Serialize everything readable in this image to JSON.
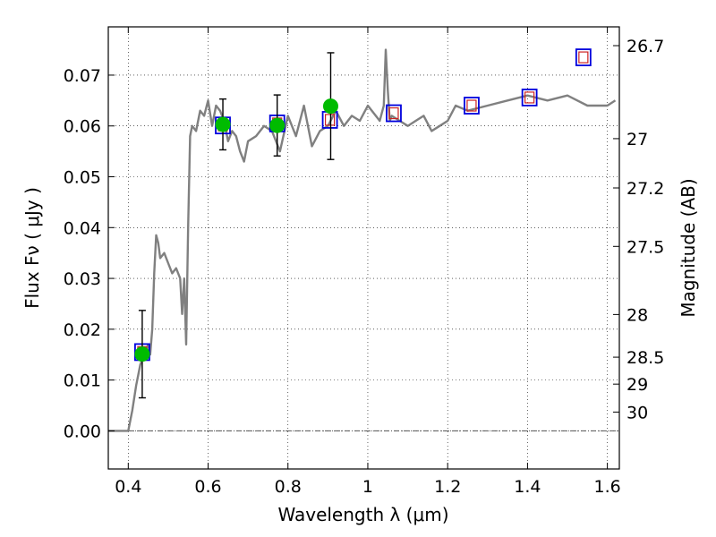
{
  "chart_data": {
    "type": "scatter",
    "xlabel": "Wavelength  λ (μm)",
    "ylabel": "Flux  Fν  ( μJy )",
    "ylabel_right": "Magnitude (AB)",
    "xlim": [
      0.35,
      1.63
    ],
    "ylim": [
      -0.0075,
      0.0795
    ],
    "grid": true,
    "x_ticks": [
      {
        "value": 0.4,
        "label": "0.4"
      },
      {
        "value": 0.6,
        "label": "0.6"
      },
      {
        "value": 0.8,
        "label": "0.8"
      },
      {
        "value": 1.0,
        "label": "1"
      },
      {
        "value": 1.2,
        "label": "1.2"
      },
      {
        "value": 1.4,
        "label": "1.4"
      },
      {
        "value": 1.6,
        "label": "1.6"
      }
    ],
    "y_ticks": [
      {
        "value": 0.0,
        "label": "0.00"
      },
      {
        "value": 0.01,
        "label": "0.01"
      },
      {
        "value": 0.02,
        "label": "0.02"
      },
      {
        "value": 0.03,
        "label": "0.03"
      },
      {
        "value": 0.04,
        "label": "0.04"
      },
      {
        "value": 0.05,
        "label": "0.05"
      },
      {
        "value": 0.06,
        "label": "0.06"
      },
      {
        "value": 0.07,
        "label": "0.07"
      }
    ],
    "y2_ticks": [
      {
        "flux": 0.0758,
        "label": "26.7"
      },
      {
        "flux": 0.0575,
        "label": "27"
      },
      {
        "flux": 0.0478,
        "label": "27.2"
      },
      {
        "flux": 0.0363,
        "label": "27.5"
      },
      {
        "flux": 0.0229,
        "label": "28"
      },
      {
        "flux": 0.0145,
        "label": "28.5"
      },
      {
        "flux": 0.0092,
        "label": "29"
      },
      {
        "flux": 0.0037,
        "label": "30"
      }
    ],
    "colors": {
      "spectrum": "#808080",
      "photometry": "#00bb00",
      "errorbar": "#000000",
      "model_box": "#0000dd",
      "model_box_inner": "#cc2222",
      "zero_line": "#555555"
    },
    "series": [
      {
        "kind": "spectrum",
        "x": [
          0.35,
          0.4,
          0.41,
          0.42,
          0.43,
          0.44,
          0.45,
          0.455,
          0.46,
          0.465,
          0.47,
          0.475,
          0.48,
          0.49,
          0.5,
          0.51,
          0.52,
          0.53,
          0.535,
          0.54,
          0.545,
          0.55,
          0.555,
          0.56,
          0.57,
          0.58,
          0.59,
          0.6,
          0.61,
          0.62,
          0.63,
          0.64,
          0.65,
          0.66,
          0.67,
          0.68,
          0.69,
          0.7,
          0.72,
          0.74,
          0.76,
          0.78,
          0.8,
          0.82,
          0.84,
          0.86,
          0.88,
          0.9,
          0.92,
          0.94,
          0.96,
          0.98,
          1.0,
          1.02,
          1.03,
          1.04,
          1.045,
          1.05,
          1.055,
          1.06,
          1.08,
          1.1,
          1.12,
          1.14,
          1.16,
          1.18,
          1.2,
          1.22,
          1.25,
          1.3,
          1.35,
          1.4,
          1.45,
          1.5,
          1.55,
          1.6,
          1.62
        ],
        "y": [
          0.0,
          0.0,
          0.004,
          0.009,
          0.013,
          0.015,
          0.017,
          0.015,
          0.02,
          0.031,
          0.0385,
          0.037,
          0.034,
          0.035,
          0.033,
          0.031,
          0.032,
          0.03,
          0.023,
          0.03,
          0.017,
          0.04,
          0.058,
          0.06,
          0.059,
          0.063,
          0.062,
          0.065,
          0.06,
          0.064,
          0.063,
          0.061,
          0.057,
          0.059,
          0.058,
          0.055,
          0.053,
          0.057,
          0.058,
          0.06,
          0.059,
          0.055,
          0.062,
          0.058,
          0.064,
          0.056,
          0.059,
          0.06,
          0.063,
          0.06,
          0.062,
          0.061,
          0.064,
          0.062,
          0.061,
          0.064,
          0.075,
          0.067,
          0.061,
          0.062,
          0.061,
          0.06,
          0.061,
          0.062,
          0.059,
          0.06,
          0.061,
          0.064,
          0.063,
          0.064,
          0.065,
          0.066,
          0.065,
          0.066,
          0.064,
          0.064,
          0.065
        ]
      },
      {
        "kind": "photometry",
        "x": [
          0.435,
          0.637,
          0.773,
          0.907
        ],
        "y": [
          0.0151,
          0.0603,
          0.0601,
          0.0639
        ],
        "yerr": [
          0.0086,
          0.005,
          0.006,
          0.0105
        ]
      },
      {
        "kind": "model_boxes",
        "x": [
          0.435,
          0.637,
          0.773,
          0.905,
          1.065,
          1.26,
          1.405,
          1.54
        ],
        "y": [
          0.0155,
          0.0601,
          0.0605,
          0.0612,
          0.0625,
          0.064,
          0.0656,
          0.0735
        ]
      }
    ]
  }
}
